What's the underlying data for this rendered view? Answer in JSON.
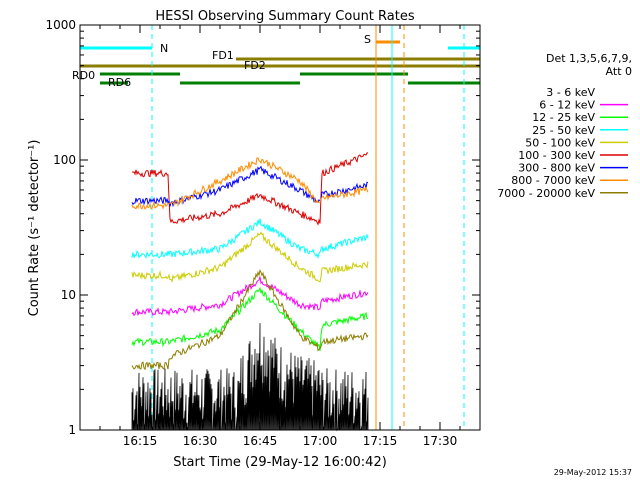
{
  "chart_data": {
    "type": "line",
    "title": "HESSI Observing Summary Count Rates",
    "xlabel": "Start Time (29-May-12 16:00:42)",
    "ylabel": "Count Rate (s⁻¹ detector⁻¹)",
    "y_scale": "log",
    "xlim_minutes": [
      0,
      100
    ],
    "ylim": [
      1,
      1000
    ],
    "x_ticks": [
      {
        "minute": 15,
        "label": "16:15"
      },
      {
        "minute": 30,
        "label": "16:30"
      },
      {
        "minute": 45,
        "label": "16:45"
      },
      {
        "minute": 60,
        "label": "17:00"
      },
      {
        "minute": 75,
        "label": "17:15"
      },
      {
        "minute": 90,
        "label": "17:30"
      }
    ],
    "y_ticks": [
      {
        "value": 1,
        "label": "1"
      },
      {
        "value": 10,
        "label": "10"
      },
      {
        "value": 100,
        "label": "100"
      },
      {
        "value": 1000,
        "label": "1000"
      }
    ],
    "legend": {
      "placement": "right",
      "header": [
        "Det 1,3,5,6,7,9,",
        "Att 0"
      ]
    },
    "series": [
      {
        "name": "3 - 6 keV",
        "color": "#ffffff",
        "x": [
          13,
          22,
          22.5,
          40,
          45,
          50,
          55,
          60,
          60.5,
          72
        ],
        "y": [
          null,
          null,
          null,
          2,
          4,
          2.5,
          2,
          1.8,
          null,
          null
        ]
      },
      {
        "name": "6 - 12 keV",
        "color": "#ff00ff",
        "x": [
          13,
          22,
          22.5,
          35,
          45,
          55,
          60,
          60.5,
          72
        ],
        "y": [
          7.5,
          7.5,
          7.5,
          8.5,
          13,
          8.5,
          8,
          9,
          10.5
        ]
      },
      {
        "name": "12 - 25 keV",
        "color": "#00ff00",
        "x": [
          13,
          22,
          22.5,
          35,
          45,
          55,
          60,
          60.5,
          72
        ],
        "y": [
          4.5,
          4.5,
          4.5,
          5.5,
          11,
          5.5,
          4,
          6,
          7
        ]
      },
      {
        "name": "25 - 50 keV",
        "color": "#00ffff",
        "x": [
          13,
          22,
          22.5,
          35,
          45,
          55,
          60,
          60.5,
          72
        ],
        "y": [
          20,
          20,
          20,
          22,
          35,
          22,
          20,
          22,
          27
        ]
      },
      {
        "name": "50 - 100 keV",
        "color": "#cccc00",
        "x": [
          13,
          22,
          22.5,
          35,
          45,
          55,
          60,
          60.5,
          72
        ],
        "y": [
          14,
          14,
          13,
          16,
          28,
          16,
          13,
          15,
          17
        ]
      },
      {
        "name": "100 - 300 keV",
        "color": "#dd0000",
        "x": [
          13,
          22,
          22.5,
          35,
          45,
          55,
          60,
          60.5,
          72
        ],
        "y": [
          80,
          80,
          35,
          40,
          55,
          40,
          35,
          80,
          110
        ]
      },
      {
        "name": "300 - 800 keV",
        "color": "#0000ff",
        "x": [
          13,
          22,
          22.5,
          35,
          45,
          55,
          60,
          60.5,
          72
        ],
        "y": [
          50,
          50,
          48,
          60,
          85,
          60,
          48,
          55,
          65
        ]
      },
      {
        "name": "800 - 7000 keV",
        "color": "#ff8c00",
        "x": [
          13,
          22,
          22.5,
          35,
          45,
          55,
          60,
          60.5,
          72
        ],
        "y": [
          46,
          46,
          46,
          70,
          102,
          70,
          46,
          52,
          60
        ]
      },
      {
        "name": "7000 - 20000 keV",
        "color": "#8b7d00",
        "x": [
          13,
          22,
          22.5,
          35,
          45,
          55,
          60,
          60.5,
          72
        ],
        "y": [
          3,
          3,
          3.5,
          5,
          15,
          5,
          4,
          4.5,
          5
        ]
      }
    ],
    "flags": [
      {
        "label": "N",
        "color": "#00ffff",
        "segments": [
          [
            0,
            18
          ],
          [
            92,
            100
          ]
        ]
      },
      {
        "label": "S",
        "color": "#ff8c00",
        "segments": [
          [
            74,
            80
          ]
        ]
      },
      {
        "label": "FD1",
        "color": "#8b7d00",
        "segments": [
          [
            39,
            100
          ]
        ]
      },
      {
        "label": "FD2",
        "color": "#8b7d00",
        "segments": [
          [
            0,
            100
          ]
        ]
      },
      {
        "label": "RD0",
        "color": "#008000",
        "segments": [
          [
            5,
            25
          ],
          [
            55,
            82
          ]
        ]
      },
      {
        "label": "RD6",
        "color": "#008000",
        "segments": [
          [
            5,
            12
          ],
          [
            25,
            55
          ],
          [
            82,
            100
          ]
        ]
      }
    ],
    "vlines": [
      {
        "minute": 0,
        "color": "#00ffff",
        "style": "solid"
      },
      {
        "minute": 18,
        "color": "#00ffff",
        "style": "dashed"
      },
      {
        "minute": 74,
        "color": "#ff8c00",
        "style": "solid"
      },
      {
        "minute": 78,
        "color": "#00ffff",
        "style": "solid"
      },
      {
        "minute": 81,
        "color": "#ff8c00",
        "style": "dashed"
      },
      {
        "minute": 96,
        "color": "#00ffff",
        "style": "dashed"
      }
    ]
  },
  "date_stamp": "29-May-2012 15:37"
}
